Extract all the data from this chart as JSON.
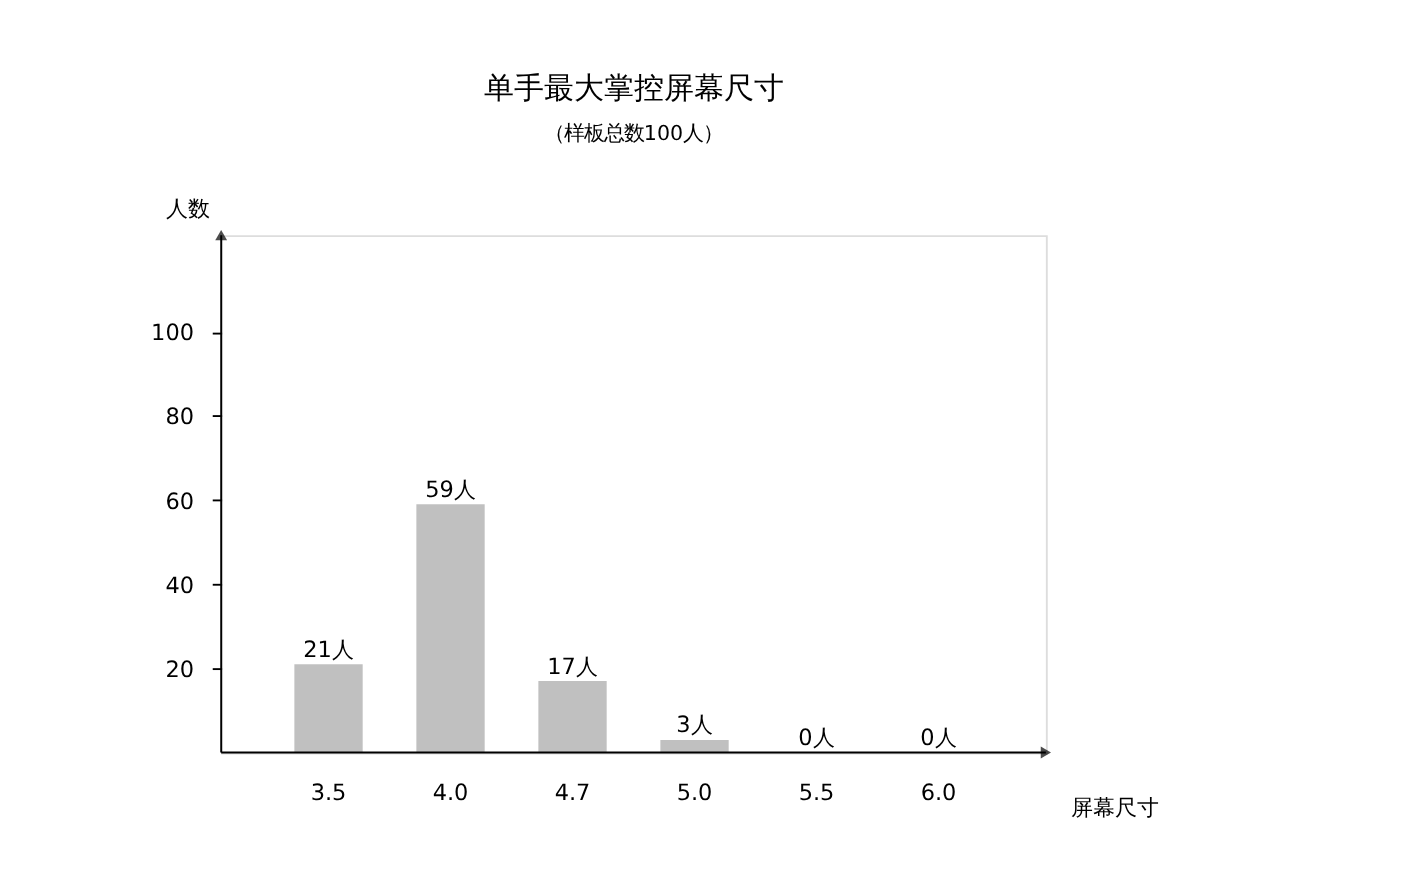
{
  "chart_data": {
    "type": "bar",
    "title": "单手最大掌控屏幕尺寸",
    "subtitle": "（样板总数100人）",
    "xlabel": "屏幕尺寸",
    "ylabel": "人数",
    "categories": [
      "3.5",
      "4.0",
      "4.7",
      "5.0",
      "5.5",
      "6.0"
    ],
    "values": [
      21,
      59,
      17,
      3,
      0,
      0
    ],
    "value_labels": [
      "21人",
      "59人",
      "17人",
      "3人",
      "0人",
      "0人"
    ],
    "color": "#c0c0c0",
    "ylim": [
      0,
      123
    ],
    "yticks": [
      20,
      40,
      60,
      80,
      100
    ],
    "grid": false
  }
}
